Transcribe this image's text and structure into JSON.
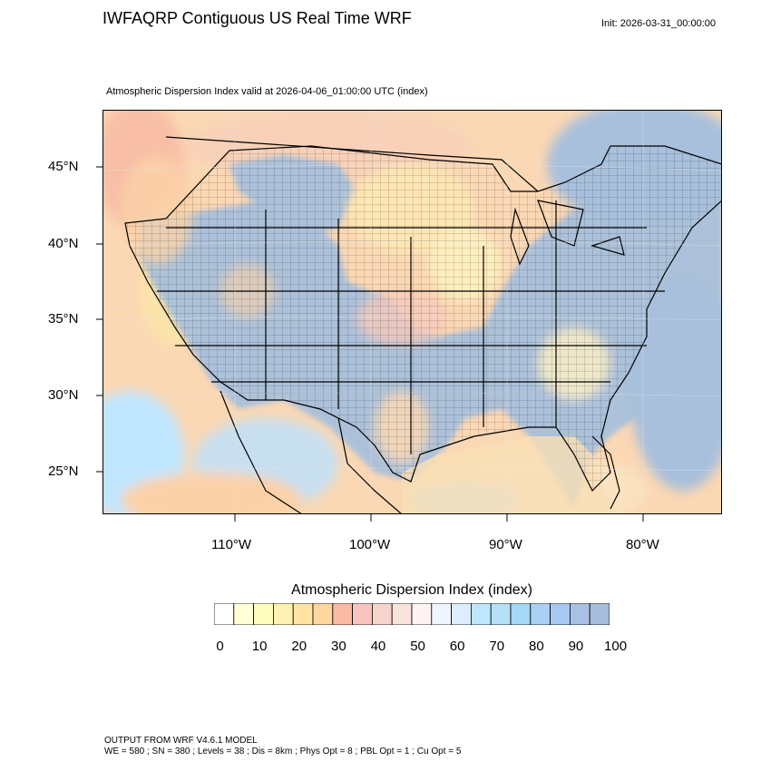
{
  "title": "IWFAQRP Contiguous US Real Time WRF",
  "init": "Init: 2026-03-31_00:00:00",
  "subtitle": "Atmospheric Dispersion Index valid at 2026-04-06_01:00:00 UTC   (index)",
  "lat_labels": [
    "45°N",
    "40°N",
    "35°N",
    "30°N",
    "25°N"
  ],
  "lon_labels": [
    "110°W",
    "100°W",
    "90°W",
    "80°W"
  ],
  "colorbar": {
    "title": "Atmospheric Dispersion Index  (index)",
    "colors": [
      "#ffffff",
      "#ffffd8",
      "#fffcc0",
      "#fff2b0",
      "#ffe4a4",
      "#ffd6a0",
      "#fbbaa6",
      "#f6c4bc",
      "#f7d4cc",
      "#f9e4dc",
      "#fff4f4",
      "#f0f6ff",
      "#dceeff",
      "#bfe6ff",
      "#b4e0f8",
      "#a4d8f4",
      "#aad0f4",
      "#a8c8f4",
      "#a8c0e4",
      "#a8bcdc"
    ],
    "tick_labels": [
      "0",
      "10",
      "20",
      "30",
      "40",
      "50",
      "60",
      "70",
      "80",
      "90",
      "100"
    ]
  },
  "footer": {
    "line1": "OUTPUT FROM WRF V4.6.1 MODEL",
    "line2": "WE = 580 ; SN = 380 ; Levels = 38 ; Dis = 8km ; Phys Opt = 8 ; PBL Opt = 1 ; Cu Opt = 5"
  }
}
